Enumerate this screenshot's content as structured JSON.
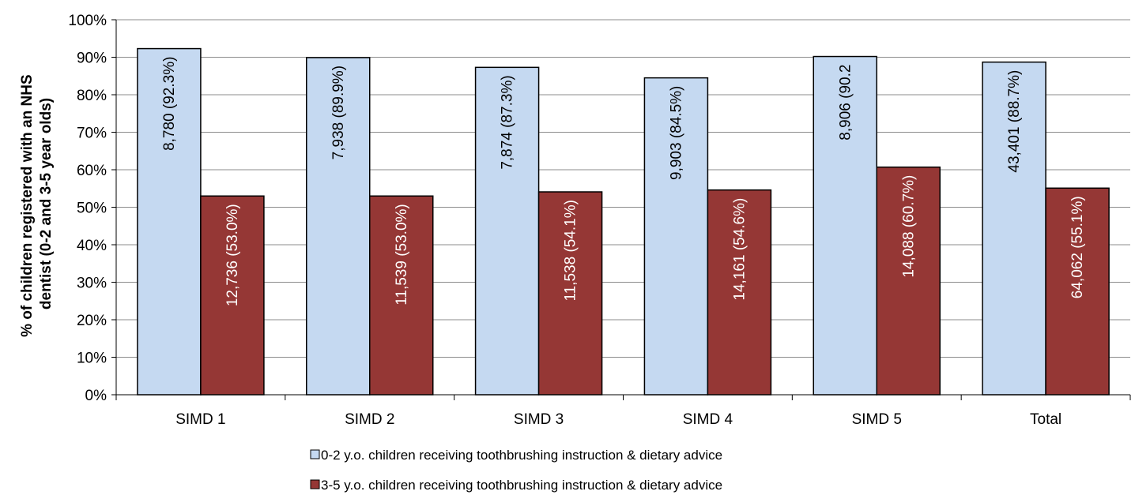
{
  "chart_data": {
    "type": "bar",
    "title": "",
    "xlabel": "",
    "ylabel_lines": [
      "% of children registered with an NHS",
      "dentist (0-2 and 3-5 year olds)"
    ],
    "ylim": [
      0,
      100
    ],
    "yticks": [
      "0%",
      "10%",
      "20%",
      "30%",
      "40%",
      "50%",
      "60%",
      "70%",
      "80%",
      "90%",
      "100%"
    ],
    "grid": true,
    "legend_position": "bottom",
    "categories": [
      "SIMD 1",
      "SIMD 2",
      "SIMD 3",
      "SIMD 4",
      "SIMD 5",
      "Total"
    ],
    "series": [
      {
        "name": "0-2 y.o. children receiving toothbrushing instruction & dietary advice",
        "color": "#c5d9f1",
        "values": [
          92.3,
          89.9,
          87.3,
          84.5,
          90.2,
          88.7
        ],
        "labels": [
          "8,780 (92.3%)",
          "7,938 (89.9%)",
          "7,874 (87.3%)",
          "9,903 (84.5%)",
          "8,906 (90.2",
          "43,401 (88.7%)"
        ]
      },
      {
        "name": "3-5 y.o. children receiving toothbrushing instruction & dietary advice",
        "color": "#953735",
        "values": [
          53.0,
          53.0,
          54.1,
          54.6,
          60.7,
          55.1
        ],
        "labels": [
          "12,736 (53.0%)",
          "11,539 (53.0%)",
          "11,538 (54.1%)",
          "14,161 (54.6%)",
          "14,088 (60.7%)",
          "64,062 (55.1%)"
        ]
      }
    ]
  }
}
